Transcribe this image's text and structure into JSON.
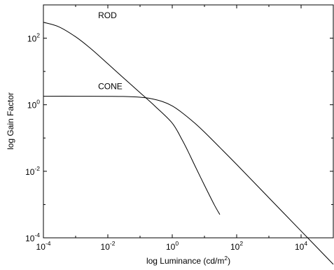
{
  "chart_data": {
    "type": "line",
    "title": "",
    "xlabel": "log Luminance (cd/m",
    "xlabel_sup": "2",
    "xlabel_end": ")",
    "ylabel": "log Gain Factor",
    "x_scale": "log",
    "y_scale": "log",
    "xlim": [
      0.0001,
      100000
    ],
    "ylim": [
      0.0001,
      1000
    ],
    "grid": false,
    "legend": "none",
    "x_ticks": [
      {
        "base": "10",
        "exp": "-4",
        "value": 0.0001
      },
      {
        "base": "10",
        "exp": "-2",
        "value": 0.01
      },
      {
        "base": "10",
        "exp": "0",
        "value": 1
      },
      {
        "base": "10",
        "exp": "2",
        "value": 100
      },
      {
        "base": "10",
        "exp": "4",
        "value": 10000
      }
    ],
    "y_ticks": [
      {
        "base": "10",
        "exp": "-4",
        "value": 0.0001
      },
      {
        "base": "10",
        "exp": "-2",
        "value": 0.01
      },
      {
        "base": "10",
        "exp": "0",
        "value": 1
      },
      {
        "base": "10",
        "exp": "2",
        "value": 100
      }
    ],
    "series": [
      {
        "name": "ROD",
        "color": "#000000",
        "x": [
          0.0001,
          0.0003,
          0.001,
          0.003,
          0.01,
          0.03,
          0.1,
          0.3,
          1,
          2,
          3,
          5,
          10,
          20,
          30
        ],
        "y": [
          300,
          220,
          110,
          48,
          17,
          6.5,
          2.3,
          0.88,
          0.28,
          0.09,
          0.042,
          0.015,
          0.0038,
          0.001,
          0.0005
        ]
      },
      {
        "name": "CONE",
        "color": "#000000",
        "x": [
          0.0001,
          0.001,
          0.01,
          0.03,
          0.1,
          0.2,
          0.5,
          1,
          2,
          5,
          10,
          30,
          100,
          1000,
          10000,
          100000
        ],
        "y": [
          1.8,
          1.8,
          1.79,
          1.77,
          1.68,
          1.55,
          1.24,
          0.92,
          0.58,
          0.28,
          0.15,
          0.052,
          0.016,
          0.0016,
          0.00016,
          1.6e-05
        ]
      }
    ],
    "annotations": [
      {
        "text": "ROD",
        "x": 0.005,
        "y": 400
      },
      {
        "text": "CONE",
        "x": 0.005,
        "y": 2.9
      }
    ]
  }
}
